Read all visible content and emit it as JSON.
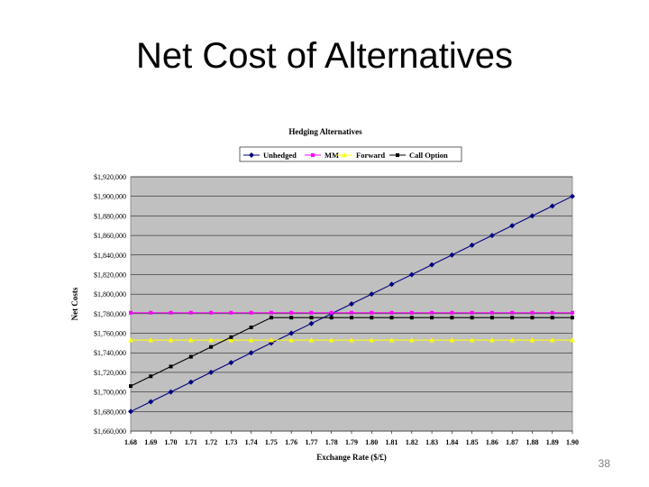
{
  "slide": {
    "title": "Net Cost of Alternatives",
    "page_number": "38"
  },
  "chart_data": {
    "type": "line",
    "title": "Hedging Alternatives",
    "xlabel": "Exchange Rate ($/£)",
    "ylabel": "Net Costs",
    "x": [
      1.68,
      1.69,
      1.7,
      1.71,
      1.72,
      1.73,
      1.74,
      1.75,
      1.76,
      1.77,
      1.78,
      1.79,
      1.8,
      1.81,
      1.82,
      1.83,
      1.84,
      1.85,
      1.86,
      1.87,
      1.88,
      1.89,
      1.9
    ],
    "x_tick_labels": [
      "1.68",
      "1.69",
      "1.70",
      "1.71",
      "1.72",
      "1.73",
      "1.74",
      "1.75",
      "1.76",
      "1.77",
      "1.78",
      "1.79",
      "1.80",
      "1.81",
      "1.82",
      "1.83",
      "1.84",
      "1.85",
      "1.86",
      "1.87",
      "1.88",
      "1.89",
      "1.90"
    ],
    "ylim": [
      1660000,
      1920000
    ],
    "y_ticks": [
      1660000,
      1680000,
      1700000,
      1720000,
      1740000,
      1760000,
      1780000,
      1800000,
      1820000,
      1840000,
      1860000,
      1880000,
      1900000,
      1920000
    ],
    "y_tick_labels": [
      "$1,660,000",
      "$1,680,000",
      "$1,700,000",
      "$1,720,000",
      "$1,740,000",
      "$1,760,000",
      "$1,780,000",
      "$1,800,000",
      "$1,820,000",
      "$1,840,000",
      "$1,860,000",
      "$1,880,000",
      "$1,900,000",
      "$1,920,000"
    ],
    "grid": true,
    "legend_position": "top",
    "plot_background": "#c0c0c0",
    "series": [
      {
        "name": "Unhedged",
        "color": "#000080",
        "marker": "diamond",
        "values": [
          1680000,
          1690000,
          1700000,
          1710000,
          1720000,
          1730000,
          1740000,
          1750000,
          1760000,
          1770000,
          1780000,
          1790000,
          1800000,
          1810000,
          1820000,
          1830000,
          1840000,
          1850000,
          1860000,
          1870000,
          1880000,
          1890000,
          1900000
        ]
      },
      {
        "name": "MM",
        "color": "#ff00ff",
        "marker": "square",
        "values": [
          1781000,
          1781000,
          1781000,
          1781000,
          1781000,
          1781000,
          1781000,
          1781000,
          1781000,
          1781000,
          1781000,
          1781000,
          1781000,
          1781000,
          1781000,
          1781000,
          1781000,
          1781000,
          1781000,
          1781000,
          1781000,
          1781000,
          1781000
        ]
      },
      {
        "name": "Forward",
        "color": "#ffff00",
        "marker": "triangle",
        "values": [
          1753000,
          1753000,
          1753000,
          1753000,
          1753000,
          1753000,
          1753000,
          1753000,
          1753000,
          1753000,
          1753000,
          1753000,
          1753000,
          1753000,
          1753000,
          1753000,
          1753000,
          1753000,
          1753000,
          1753000,
          1753000,
          1753000,
          1753000
        ]
      },
      {
        "name": "Call Option",
        "color": "#000000",
        "marker": "square",
        "values": [
          1706000,
          1716000,
          1726000,
          1736000,
          1746000,
          1756000,
          1766000,
          1776000,
          1776000,
          1776000,
          1776000,
          1776000,
          1776000,
          1776000,
          1776000,
          1776000,
          1776000,
          1776000,
          1776000,
          1776000,
          1776000,
          1776000,
          1776000
        ]
      }
    ]
  }
}
